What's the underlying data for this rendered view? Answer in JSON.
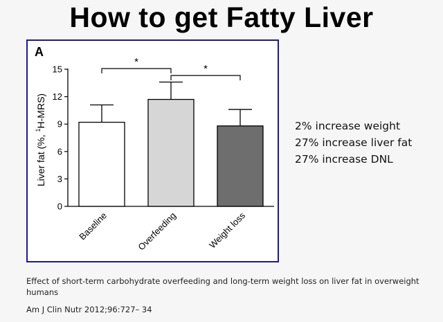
{
  "slide": {
    "title": "How to get Fatty Liver",
    "findings": [
      "2% increase weight",
      "27% increase liver fat",
      "27% increase DNL"
    ],
    "caption": "Effect of short-term carbohydrate overfeeding and long-term weight loss on liver fat in overweight humans",
    "citation": "Am J Clin Nutr 2012;96:727– 34"
  },
  "chart_data": {
    "type": "bar",
    "panel_label": "A",
    "categories": [
      "Baseline",
      "Overfeeding",
      "Weight loss"
    ],
    "values": [
      9.2,
      11.7,
      8.8
    ],
    "errors": [
      1.9,
      1.9,
      1.8
    ],
    "colors": [
      "#ffffff",
      "#d6d6d6",
      "#6e6e6e"
    ],
    "ylabel_main": "Liver fat (%, ",
    "ylabel_sup": "1",
    "ylabel_tail": "H-MRS)",
    "ylim": [
      0,
      15
    ],
    "yticks": [
      0,
      3,
      6,
      9,
      12,
      15
    ],
    "significance": [
      {
        "from": 0,
        "to": 1,
        "label": "*"
      },
      {
        "from": 1,
        "to": 2,
        "label": "*"
      }
    ],
    "grid": false
  }
}
